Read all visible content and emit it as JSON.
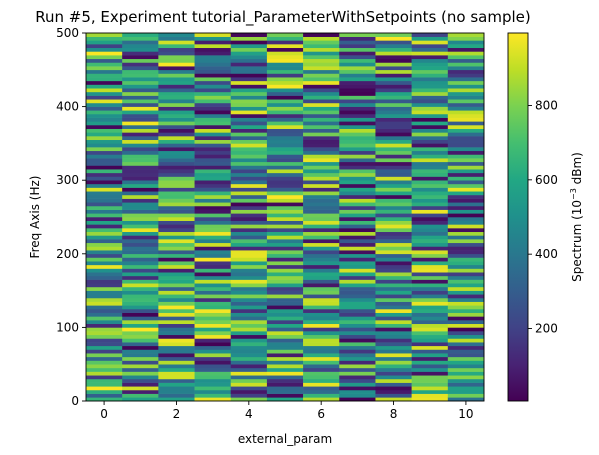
{
  "chart_data": {
    "type": "heatmap",
    "title": "Run #5, Experiment tutorial_ParameterWithSetpoints (no sample)",
    "xlabel": "external_param",
    "ylabel": "Freq Axis (Hz)",
    "xlim": [
      -0.5,
      10.5
    ],
    "ylim": [
      0,
      500
    ],
    "x_ticks": [
      0,
      2,
      4,
      6,
      8,
      10
    ],
    "y_ticks": [
      0,
      100,
      200,
      300,
      400,
      500
    ],
    "x": [
      0,
      1,
      2,
      3,
      4,
      5,
      6,
      7,
      8,
      9,
      10
    ],
    "y_bins": 100,
    "y_bin_width_hz": 5,
    "value_range": [
      5,
      995
    ],
    "values_note": "",
    "colormap": "viridis",
    "colorbar": {
      "label_main": "Spectrum (10",
      "label_exp": "−3",
      "label_unit": " dBm)",
      "ticks": [
        200,
        400,
        600,
        800
      ],
      "range": [
        5,
        995
      ]
    },
    "grid": false
  }
}
